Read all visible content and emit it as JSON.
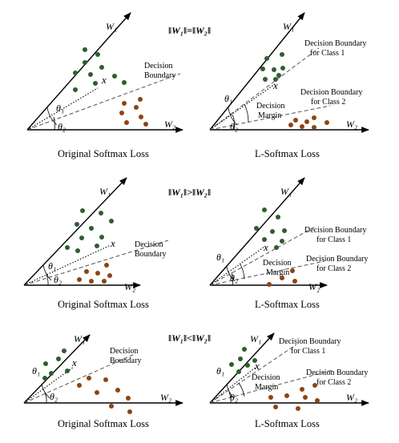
{
  "conditions": [
    "‖W₁‖=‖W₂‖",
    "‖W₁‖>‖W₂‖",
    "‖W₁‖<‖W₂‖"
  ],
  "labels": {
    "w1": "W₁",
    "w2": "W₂",
    "theta1": "θ₁",
    "theta2": "θ₂",
    "x": "x",
    "decision": "Decision",
    "boundary": "Boundary",
    "db_class1_line1": "Decision Boundary",
    "db_class1_line2": "for Class 1",
    "db_class2_line1": "Decision Boundary",
    "db_class2_line2": "for Class 2",
    "margin_line1": "Decision",
    "margin_line2": "Margin"
  },
  "captions": {
    "original": "Original Softmax Loss",
    "lsoftmax": "L-Softmax Loss"
  },
  "colors": {
    "class1": "#2e5e2e",
    "class2": "#8b4513",
    "line": "#000000"
  }
}
